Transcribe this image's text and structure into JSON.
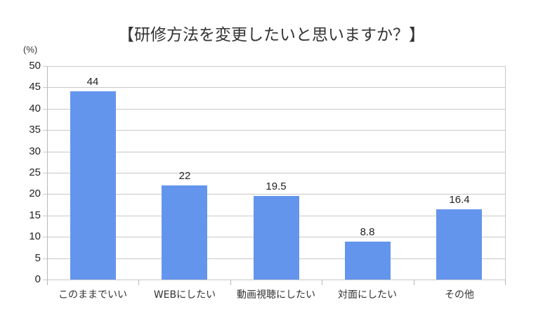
{
  "chart_data": {
    "type": "bar",
    "title": "【研修方法を変更したいと思いますか？】",
    "ylabel": "(%)",
    "xlabel": "",
    "ylim": [
      0,
      50
    ],
    "yticks": [
      "0",
      "5",
      "10",
      "15",
      "20",
      "25",
      "30",
      "35",
      "40",
      "45",
      "50"
    ],
    "categories": [
      "このままでいい",
      "WEBにしたい",
      "動画視聴にしたい",
      "対面にしたい",
      "その他"
    ],
    "values": [
      44,
      22,
      19.5,
      8.8,
      16.4
    ],
    "value_labels": [
      "44",
      "22",
      "19.5",
      "8.8",
      "16.4"
    ],
    "grid": true,
    "legend": null,
    "bar_color": "#6495ed"
  }
}
